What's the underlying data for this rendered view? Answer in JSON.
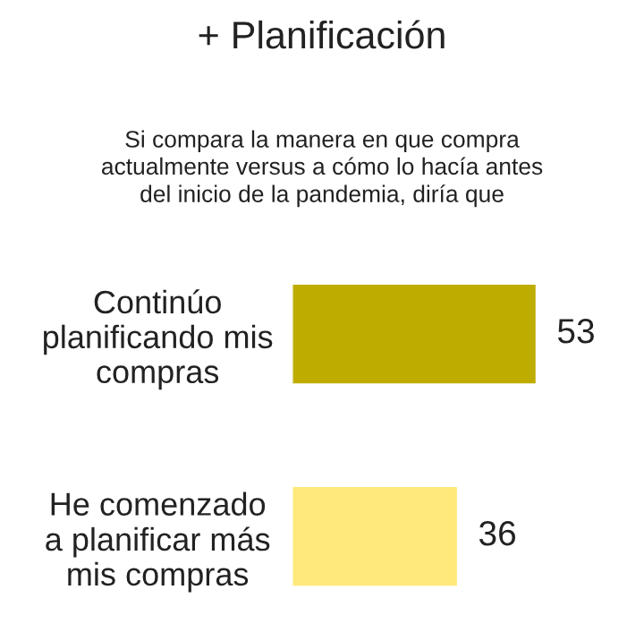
{
  "chart_data": {
    "type": "bar",
    "orientation": "horizontal",
    "title": "+ Planificación",
    "subtitle": "Si compara la manera en que compra\nactualmente versus a cómo lo hacía antes\ndel inicio de la pandemia, diría que",
    "categories": [
      "Continúo\nplanificando mis\ncompras",
      "He comenzado\na planificar más\nmis compras"
    ],
    "values": [
      53,
      36
    ],
    "colors": [
      "#bfac00",
      "#ffe97a"
    ],
    "data_labels": true
  }
}
